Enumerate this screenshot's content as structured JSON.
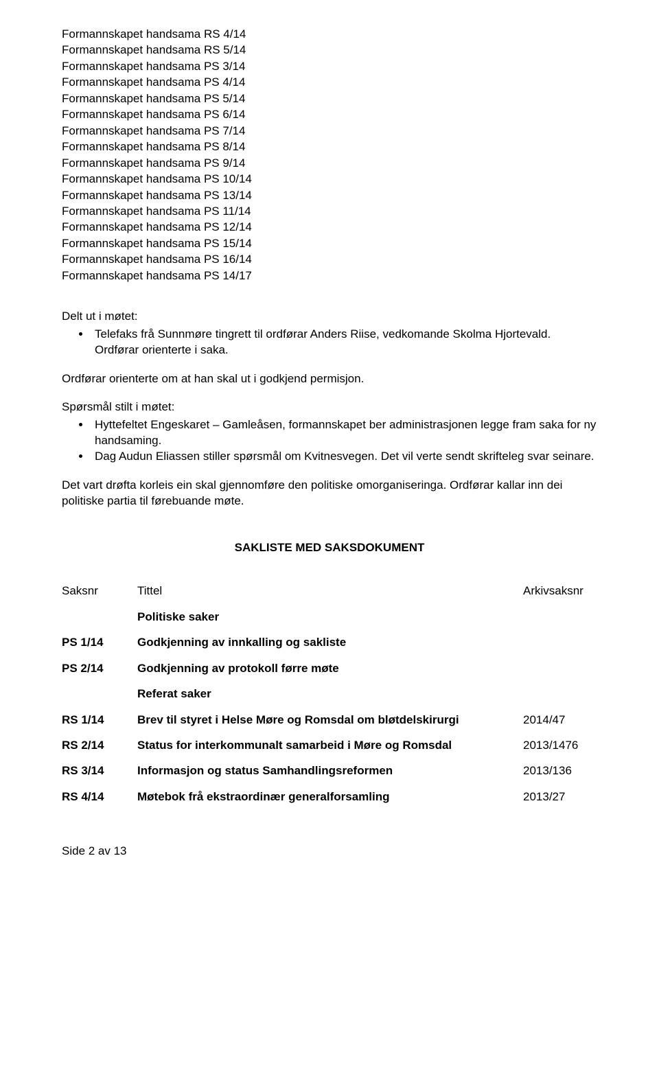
{
  "handsama_list": [
    "Formannskapet handsama RS 4/14",
    "Formannskapet handsama RS 5/14",
    "Formannskapet handsama PS 3/14",
    "Formannskapet handsama PS 4/14",
    "Formannskapet handsama PS 5/14",
    "Formannskapet handsama PS 6/14",
    "Formannskapet handsama PS 7/14",
    "Formannskapet handsama PS 8/14",
    "Formannskapet handsama PS 9/14",
    "Formannskapet handsama PS 10/14",
    "Formannskapet handsama PS 13/14",
    "Formannskapet handsama PS 11/14",
    "Formannskapet handsama PS 12/14",
    "Formannskapet handsama PS 15/14",
    "Formannskapet handsama PS 16/14",
    "Formannskapet handsama PS 14/17"
  ],
  "delt_ut": {
    "heading": "Delt ut i møtet:",
    "items": [
      "Telefaks frå Sunnmøre tingrett til ordførar Anders Riise, vedkomande Skolma Hjortevald. Ordførar orienterte i saka."
    ]
  },
  "ordforar_para": "Ordførar orienterte om at han skal ut i godkjend permisjon.",
  "sporsmal": {
    "heading": "Spørsmål stilt i møtet:",
    "items": [
      "Hyttefeltet Engeskaret – Gamleåsen, formannskapet ber administrasjonen legge fram saka for ny handsaming.",
      "Dag Audun Eliassen stiller spørsmål om Kvitnesvegen. Det vil verte sendt skrifteleg svar seinare."
    ]
  },
  "drofta_para": "Det vart drøfta korleis ein skal gjennomføre den politiske omorganiseringa. Ordførar kallar inn dei politiske partia til førebuande møte.",
  "sakliste": {
    "heading": "SAKLISTE MED SAKSDOKUMENT",
    "col_saksnr": "Saksnr",
    "col_tittel": "Tittel",
    "col_arkiv": "Arkivsaksnr",
    "rows": [
      {
        "nr": "",
        "title": "Politiske saker",
        "ark": "",
        "bold": true
      },
      {
        "nr": "PS 1/14",
        "title": "Godkjenning av innkalling og sakliste",
        "ark": "",
        "bold": true
      },
      {
        "nr": "PS 2/14",
        "title": "Godkjenning av protokoll førre møte",
        "ark": "",
        "bold": true
      },
      {
        "nr": "",
        "title": "Referat saker",
        "ark": "",
        "bold": true
      },
      {
        "nr": "RS 1/14",
        "title": "Brev til styret i Helse Møre og Romsdal om bløtdelskirurgi",
        "ark": "2014/47",
        "bold": true
      },
      {
        "nr": "RS 2/14",
        "title": "Status for interkommunalt samarbeid i Møre og Romsdal",
        "ark": "2013/1476",
        "bold": true
      },
      {
        "nr": "RS 3/14",
        "title": "Informasjon og status Samhandlingsreformen",
        "ark": "2013/136",
        "bold": true
      },
      {
        "nr": "RS 4/14",
        "title": "Møtebok frå ekstraordinær generalforsamling",
        "ark": "2013/27",
        "bold": true
      }
    ]
  },
  "footer": "Side 2 av 13"
}
